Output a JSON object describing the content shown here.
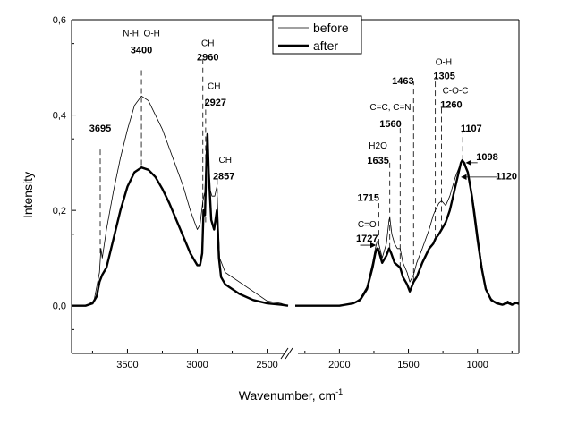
{
  "chart_data": {
    "type": "line",
    "xlabel": "Wavenumber, cm",
    "xlabel_sup": "-1",
    "ylabel": "Intensity",
    "x_reversed": true,
    "axis_break": [
      2350,
      2320
    ],
    "xlim_left": [
      3900,
      2350
    ],
    "xlim_right": [
      2320,
      700
    ],
    "ylim": [
      -0.1,
      0.6
    ],
    "y_ticks": [
      {
        "v": 0.0,
        "label": "0,0"
      },
      {
        "v": 0.2,
        "label": "0,2"
      },
      {
        "v": 0.4,
        "label": "0,4"
      },
      {
        "v": 0.6,
        "label": "0,6"
      }
    ],
    "x_ticks": [
      {
        "v": 3500,
        "label": "3500"
      },
      {
        "v": 3000,
        "label": "3000"
      },
      {
        "v": 2500,
        "label": "2500"
      },
      {
        "v": 2000,
        "label": "2000"
      },
      {
        "v": 1500,
        "label": "1500"
      },
      {
        "v": 1000,
        "label": "1000"
      }
    ],
    "legend_position": "top-center",
    "series": [
      {
        "name": "before",
        "style": "thin",
        "points": [
          [
            3900,
            0.0
          ],
          [
            3800,
            0.0
          ],
          [
            3740,
            0.01
          ],
          [
            3700,
            0.07
          ],
          [
            3690,
            0.12
          ],
          [
            3680,
            0.1
          ],
          [
            3650,
            0.16
          ],
          [
            3600,
            0.24
          ],
          [
            3550,
            0.31
          ],
          [
            3500,
            0.37
          ],
          [
            3450,
            0.42
          ],
          [
            3400,
            0.44
          ],
          [
            3350,
            0.43
          ],
          [
            3300,
            0.4
          ],
          [
            3250,
            0.37
          ],
          [
            3200,
            0.33
          ],
          [
            3150,
            0.29
          ],
          [
            3100,
            0.25
          ],
          [
            3050,
            0.2
          ],
          [
            3000,
            0.16
          ],
          [
            2980,
            0.17
          ],
          [
            2960,
            0.22
          ],
          [
            2945,
            0.24
          ],
          [
            2935,
            0.33
          ],
          [
            2927,
            0.36
          ],
          [
            2915,
            0.25
          ],
          [
            2895,
            0.23
          ],
          [
            2875,
            0.23
          ],
          [
            2860,
            0.25
          ],
          [
            2840,
            0.1
          ],
          [
            2800,
            0.07
          ],
          [
            2700,
            0.05
          ],
          [
            2600,
            0.03
          ],
          [
            2500,
            0.01
          ],
          [
            2400,
            0.005
          ],
          [
            2350,
            0.0
          ],
          [
            2320,
            0.0
          ],
          [
            2200,
            0.0
          ],
          [
            2000,
            0.0
          ],
          [
            1900,
            0.005
          ],
          [
            1850,
            0.015
          ],
          [
            1800,
            0.04
          ],
          [
            1760,
            0.09
          ],
          [
            1740,
            0.12
          ],
          [
            1727,
            0.135
          ],
          [
            1715,
            0.13
          ],
          [
            1690,
            0.1
          ],
          [
            1660,
            0.13
          ],
          [
            1640,
            0.18
          ],
          [
            1635,
            0.185
          ],
          [
            1620,
            0.15
          ],
          [
            1600,
            0.13
          ],
          [
            1580,
            0.12
          ],
          [
            1560,
            0.12
          ],
          [
            1540,
            0.09
          ],
          [
            1510,
            0.07
          ],
          [
            1490,
            0.05
          ],
          [
            1463,
            0.065
          ],
          [
            1440,
            0.09
          ],
          [
            1400,
            0.12
          ],
          [
            1350,
            0.16
          ],
          [
            1320,
            0.19
          ],
          [
            1305,
            0.2
          ],
          [
            1280,
            0.215
          ],
          [
            1260,
            0.22
          ],
          [
            1230,
            0.21
          ],
          [
            1200,
            0.23
          ],
          [
            1160,
            0.27
          ],
          [
            1120,
            0.3
          ],
          [
            1107,
            0.305
          ],
          [
            1090,
            0.3
          ],
          [
            1060,
            0.27
          ],
          [
            1020,
            0.2
          ],
          [
            980,
            0.11
          ],
          [
            950,
            0.05
          ],
          [
            920,
            0.02
          ],
          [
            880,
            0.01
          ],
          [
            820,
            0.003
          ],
          [
            780,
            0.01
          ],
          [
            750,
            0.004
          ],
          [
            720,
            0.008
          ],
          [
            700,
            0.005
          ]
        ]
      },
      {
        "name": "after",
        "style": "thick",
        "points": [
          [
            3900,
            0.0
          ],
          [
            3800,
            0.0
          ],
          [
            3750,
            0.005
          ],
          [
            3720,
            0.02
          ],
          [
            3700,
            0.05
          ],
          [
            3680,
            0.065
          ],
          [
            3650,
            0.08
          ],
          [
            3600,
            0.14
          ],
          [
            3550,
            0.2
          ],
          [
            3500,
            0.25
          ],
          [
            3450,
            0.28
          ],
          [
            3400,
            0.29
          ],
          [
            3350,
            0.285
          ],
          [
            3300,
            0.27
          ],
          [
            3250,
            0.245
          ],
          [
            3200,
            0.215
          ],
          [
            3150,
            0.18
          ],
          [
            3100,
            0.145
          ],
          [
            3050,
            0.11
          ],
          [
            3000,
            0.085
          ],
          [
            2980,
            0.085
          ],
          [
            2965,
            0.11
          ],
          [
            2955,
            0.2
          ],
          [
            2945,
            0.19
          ],
          [
            2935,
            0.3
          ],
          [
            2927,
            0.36
          ],
          [
            2918,
            0.28
          ],
          [
            2900,
            0.18
          ],
          [
            2880,
            0.16
          ],
          [
            2860,
            0.2
          ],
          [
            2845,
            0.1
          ],
          [
            2830,
            0.06
          ],
          [
            2800,
            0.045
          ],
          [
            2700,
            0.025
          ],
          [
            2600,
            0.012
          ],
          [
            2500,
            0.005
          ],
          [
            2400,
            0.002
          ],
          [
            2350,
            0.0
          ],
          [
            2320,
            0.0
          ],
          [
            2200,
            0.0
          ],
          [
            2000,
            0.0
          ],
          [
            1900,
            0.005
          ],
          [
            1850,
            0.012
          ],
          [
            1800,
            0.035
          ],
          [
            1760,
            0.08
          ],
          [
            1740,
            0.11
          ],
          [
            1727,
            0.12
          ],
          [
            1715,
            0.115
          ],
          [
            1690,
            0.09
          ],
          [
            1660,
            0.105
          ],
          [
            1640,
            0.12
          ],
          [
            1625,
            0.11
          ],
          [
            1600,
            0.09
          ],
          [
            1580,
            0.085
          ],
          [
            1560,
            0.08
          ],
          [
            1540,
            0.06
          ],
          [
            1510,
            0.045
          ],
          [
            1490,
            0.03
          ],
          [
            1463,
            0.05
          ],
          [
            1440,
            0.06
          ],
          [
            1400,
            0.09
          ],
          [
            1350,
            0.12
          ],
          [
            1320,
            0.13
          ],
          [
            1305,
            0.14
          ],
          [
            1280,
            0.15
          ],
          [
            1260,
            0.16
          ],
          [
            1230,
            0.175
          ],
          [
            1200,
            0.2
          ],
          [
            1160,
            0.25
          ],
          [
            1120,
            0.3
          ],
          [
            1110,
            0.305
          ],
          [
            1098,
            0.3
          ],
          [
            1070,
            0.28
          ],
          [
            1040,
            0.23
          ],
          [
            1000,
            0.14
          ],
          [
            970,
            0.08
          ],
          [
            940,
            0.035
          ],
          [
            900,
            0.012
          ],
          [
            860,
            0.005
          ],
          [
            820,
            0.002
          ],
          [
            780,
            0.006
          ],
          [
            750,
            0.002
          ],
          [
            720,
            0.006
          ],
          [
            700,
            0.004
          ]
        ]
      }
    ],
    "annotations": [
      {
        "label": "3695",
        "line_x": 3695,
        "y0": 0.11,
        "y1": 0.33,
        "tx": 3695,
        "ty": 0.365
      },
      {
        "sub": "N-H, O-H",
        "label": "3400",
        "line_x": 3400,
        "y0": 0.295,
        "y1": 0.5,
        "tx": 3400,
        "ty": 0.53,
        "sub_ty": 0.565
      },
      {
        "sub": "CH",
        "label": "2960",
        "line_x": 2960,
        "y0": 0.15,
        "y1": 0.525,
        "tx": 2925,
        "ty": 0.515,
        "sub_tx": 2925,
        "sub_ty": 0.545
      },
      {
        "sub": "CH",
        "label": "2927",
        "line_x": 2940,
        "y0": 0.175,
        "y1": 0.43,
        "tx": 2870,
        "ty": 0.42,
        "sub_tx": 2880,
        "sub_ty": 0.455
      },
      {
        "sub": "CH",
        "label": "2857",
        "line_x": 2857,
        "y0": 0.16,
        "y1": 0.275,
        "tx": 2810,
        "ty": 0.265,
        "sub_tx": 2800,
        "sub_ty": 0.3
      },
      {
        "sub": "C=O",
        "label": "1727",
        "tx": 1800,
        "ty": 0.135,
        "sub_tx": 1800,
        "sub_ty": 0.165,
        "arrow": [
          1850,
          0.127,
          1740,
          0.127
        ]
      },
      {
        "label": "1715",
        "line_x": 1715,
        "y0": 0.11,
        "y1": 0.215,
        "tx": 1790,
        "ty": 0.22
      },
      {
        "sub": "H2O",
        "label": "1635",
        "line_x": 1635,
        "y0": 0.12,
        "y1": 0.3,
        "tx": 1720,
        "ty": 0.298,
        "sub_tx": 1720,
        "sub_ty": 0.33
      },
      {
        "sub": "C=C, C=N",
        "label": "1560",
        "line_x": 1560,
        "y0": 0.08,
        "y1": 0.38,
        "tx": 1630,
        "ty": 0.375,
        "sub_tx": 1630,
        "sub_ty": 0.41
      },
      {
        "label": "1463",
        "line_x": 1463,
        "y0": 0.05,
        "y1": 0.47,
        "tx": 1540,
        "ty": 0.465
      },
      {
        "sub": "O-H",
        "label": "1305",
        "line_x": 1305,
        "y0": 0.14,
        "y1": 0.48,
        "tx": 1240,
        "ty": 0.475,
        "sub_tx": 1245,
        "sub_ty": 0.505
      },
      {
        "sub": "C-O-C",
        "label": "1260",
        "line_x": 1260,
        "y0": 0.16,
        "y1": 0.415,
        "tx": 1190,
        "ty": 0.415,
        "sub_tx": 1160,
        "sub_ty": 0.445
      },
      {
        "label": "1107",
        "line_x": 1107,
        "y0": 0.305,
        "y1": 0.365,
        "tx": 1045,
        "ty": 0.365
      },
      {
        "label": "1098",
        "tx": 930,
        "ty": 0.305,
        "arrow": [
          1000,
          0.3,
          1080,
          0.3
        ]
      },
      {
        "label": "1120",
        "tx": 790,
        "ty": 0.265,
        "arrow": [
          860,
          0.27,
          1115,
          0.27
        ]
      }
    ]
  }
}
